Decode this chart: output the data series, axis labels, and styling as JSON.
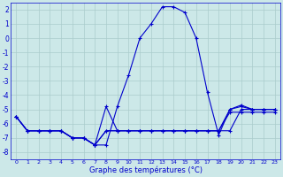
{
  "x": [
    0,
    1,
    2,
    3,
    4,
    5,
    6,
    7,
    8,
    9,
    10,
    11,
    12,
    13,
    14,
    15,
    16,
    17,
    18,
    19,
    20,
    21,
    22,
    23
  ],
  "temp_main": [
    -5.5,
    -6.5,
    -6.5,
    -6.5,
    -6.5,
    -7.0,
    -7.0,
    -7.5,
    -7.5,
    -4.8,
    -2.6,
    0.0,
    1.0,
    2.2,
    2.2,
    1.8,
    0.0,
    -3.8,
    -6.8,
    -5.0,
    -4.7,
    -5.0,
    -5.0,
    -5.0
  ],
  "temp_line2": [
    -5.5,
    -6.5,
    -6.5,
    -6.5,
    -6.5,
    -7.0,
    -7.0,
    -7.5,
    -6.5,
    -6.5,
    -6.5,
    -6.5,
    -6.5,
    -6.5,
    -6.5,
    -6.5,
    -6.5,
    -6.5,
    -6.5,
    -5.2,
    -5.2,
    -5.2,
    -5.2,
    -5.2
  ],
  "temp_line3": [
    -5.5,
    -6.5,
    -6.5,
    -6.5,
    -6.5,
    -7.0,
    -7.0,
    -7.5,
    -4.8,
    -6.5,
    -6.5,
    -6.5,
    -6.5,
    -6.5,
    -6.5,
    -6.5,
    -6.5,
    -6.5,
    -6.5,
    -5.0,
    -4.8,
    -5.0,
    -5.0,
    -5.0
  ],
  "temp_line4": [
    -5.5,
    -6.5,
    -6.5,
    -6.5,
    -6.5,
    -7.0,
    -7.0,
    -7.5,
    -6.5,
    -6.5,
    -6.5,
    -6.5,
    -6.5,
    -6.5,
    -6.5,
    -6.5,
    -6.5,
    -6.5,
    -6.5,
    -6.5,
    -5.0,
    -5.0,
    -5.0,
    -5.0
  ],
  "line_color": "#0000cc",
  "bg_color": "#cce8e8",
  "grid_color": "#aacccc",
  "xlabel": "Graphe des températures (°C)",
  "ylim": [
    -8.5,
    2.5
  ],
  "xlim": [
    -0.5,
    23.5
  ],
  "yticks": [
    2,
    1,
    0,
    -1,
    -2,
    -3,
    -4,
    -5,
    -6,
    -7,
    -8
  ],
  "xtick_labels": [
    "0",
    "1",
    "2",
    "3",
    "4",
    "5",
    "6",
    "7",
    "8",
    "9",
    "10",
    "11",
    "12",
    "13",
    "14",
    "15",
    "16",
    "17",
    "18",
    "19",
    "20",
    "21",
    "22",
    "23"
  ]
}
